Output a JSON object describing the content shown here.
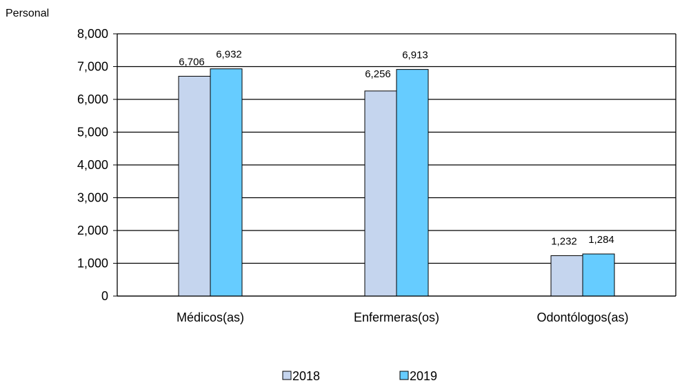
{
  "chart_data": {
    "type": "bar",
    "title": "",
    "ylabel": "Personal",
    "xlabel": "",
    "categories": [
      "Médicos(as)",
      "Enfermeras(os)",
      "Odontólogos(as)"
    ],
    "series": [
      {
        "name": "2018",
        "values": [
          6706,
          6256,
          1232
        ],
        "labels": [
          "6,706",
          "6,256",
          "1,232"
        ],
        "color": "#C5D5EE"
      },
      {
        "name": "2019",
        "values": [
          6932,
          6913,
          1284
        ],
        "labels": [
          "6,932",
          "6,913",
          "1,284"
        ],
        "color": "#66CCFF"
      }
    ],
    "ylim": [
      0,
      8000
    ],
    "yticks": [
      0,
      1000,
      2000,
      3000,
      4000,
      5000,
      6000,
      7000,
      8000
    ],
    "ytick_labels": [
      "0",
      "1,000",
      "2,000",
      "3,000",
      "4,000",
      "5,000",
      "6,000",
      "7,000",
      "8,000"
    ],
    "grid": true,
    "legend_position": "bottom-center"
  }
}
